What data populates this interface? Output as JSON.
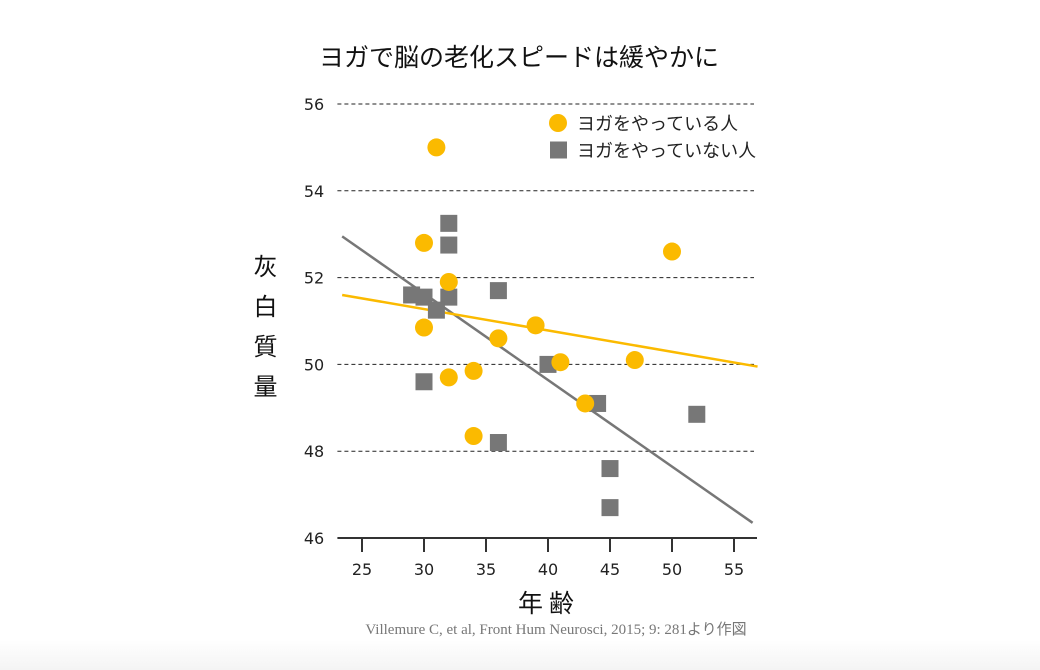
{
  "chart_data": {
    "type": "scatter",
    "title": "ヨガで脳の老化スピードは緩やかに",
    "xlabel": "年齢",
    "ylabel": "灰白質量",
    "xlim": [
      23.5,
      56.5
    ],
    "ylim": [
      46,
      56
    ],
    "xticks": [
      25,
      30,
      35,
      40,
      45,
      50,
      55
    ],
    "yticks": [
      46,
      48,
      50,
      52,
      54,
      56
    ],
    "grid": "horizontal dashed",
    "legend_position": "top-right",
    "source": "Villemure C, et al, Front Hum Neurosci, 2015; 9: 281より作図",
    "series": [
      {
        "name": "ヨガをやっている人",
        "marker": "circle",
        "color": "#FBBA00",
        "points": [
          [
            31,
            55.0
          ],
          [
            30,
            52.8
          ],
          [
            32,
            51.9
          ],
          [
            30,
            50.85
          ],
          [
            32,
            49.7
          ],
          [
            34,
            49.85
          ],
          [
            36,
            50.6
          ],
          [
            39,
            50.9
          ],
          [
            41,
            50.05
          ],
          [
            47,
            50.1
          ],
          [
            43,
            49.1
          ],
          [
            34,
            48.35
          ],
          [
            50,
            52.6
          ]
        ],
        "trend": [
          [
            23.4,
            51.6
          ],
          [
            56.9,
            49.95
          ]
        ]
      },
      {
        "name": "ヨガをやっていない人",
        "marker": "square",
        "color": "#777777",
        "points": [
          [
            29,
            51.6
          ],
          [
            30,
            51.55
          ],
          [
            32,
            53.25
          ],
          [
            32,
            52.75
          ],
          [
            32,
            51.55
          ],
          [
            31,
            51.25
          ],
          [
            36,
            51.7
          ],
          [
            30,
            49.6
          ],
          [
            40,
            50.0
          ],
          [
            44,
            49.1
          ],
          [
            36,
            48.2
          ],
          [
            45,
            47.6
          ],
          [
            45,
            46.7
          ],
          [
            52,
            48.85
          ]
        ],
        "trend": [
          [
            23.4,
            52.95
          ],
          [
            56.5,
            46.35
          ]
        ]
      }
    ]
  }
}
